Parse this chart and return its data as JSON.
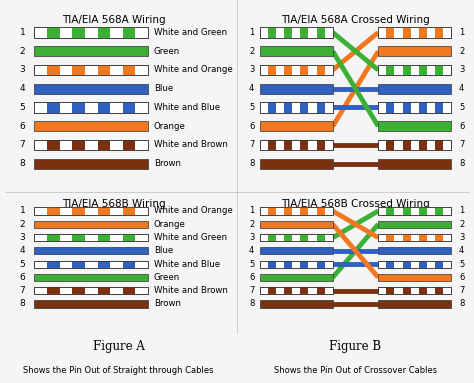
{
  "title_568A": "TIA/EIA 568A Wiring",
  "title_568B": "TIA/EIA 568B Wiring",
  "title_568A_cross": "TIA/EIA 568A Crossed Wiring",
  "title_568B_cross": "TIA/EIA 568B Crossed Wiring",
  "figure_A": "Figure A",
  "figure_B": "Figure B",
  "caption_A": "Shows the Pin Out of Straight through Cables",
  "caption_B": "Shows the Pin Out of Crossover Cables",
  "wiring_568A": [
    {
      "pin": 1,
      "label": "White and Green",
      "solid": false,
      "color": "#3cb034",
      "stripe": "#ffffff"
    },
    {
      "pin": 2,
      "label": "Green",
      "solid": true,
      "color": "#3cb034",
      "stripe": null
    },
    {
      "pin": 3,
      "label": "White and Orange",
      "solid": false,
      "color": "#f07820",
      "stripe": "#ffffff"
    },
    {
      "pin": 4,
      "label": "Blue",
      "solid": true,
      "color": "#3060c0",
      "stripe": null
    },
    {
      "pin": 5,
      "label": "White and Blue",
      "solid": false,
      "color": "#3060c0",
      "stripe": "#ffffff"
    },
    {
      "pin": 6,
      "label": "Orange",
      "solid": true,
      "color": "#f07820",
      "stripe": null
    },
    {
      "pin": 7,
      "label": "White and Brown",
      "solid": false,
      "color": "#7b3010",
      "stripe": "#ffffff"
    },
    {
      "pin": 8,
      "label": "Brown",
      "solid": true,
      "color": "#7b3010",
      "stripe": null
    }
  ],
  "wiring_568B": [
    {
      "pin": 1,
      "label": "White and Orange",
      "solid": false,
      "color": "#f07820",
      "stripe": "#ffffff"
    },
    {
      "pin": 2,
      "label": "Orange",
      "solid": true,
      "color": "#f07820",
      "stripe": null
    },
    {
      "pin": 3,
      "label": "White and Green",
      "solid": false,
      "color": "#3cb034",
      "stripe": "#ffffff"
    },
    {
      "pin": 4,
      "label": "Blue",
      "solid": true,
      "color": "#3060c0",
      "stripe": null
    },
    {
      "pin": 5,
      "label": "White and Blue",
      "solid": false,
      "color": "#3060c0",
      "stripe": "#ffffff"
    },
    {
      "pin": 6,
      "label": "Green",
      "solid": true,
      "color": "#3cb034",
      "stripe": null
    },
    {
      "pin": 7,
      "label": "White and Brown",
      "solid": false,
      "color": "#7b3010",
      "stripe": "#ffffff"
    },
    {
      "pin": 8,
      "label": "Brown",
      "solid": true,
      "color": "#7b3010",
      "stripe": null
    }
  ],
  "bg_color": "#f5f5f5",
  "border_color": "#333333",
  "text_color": "#000000",
  "title_fontsize": 7.5,
  "label_fontsize": 6.2,
  "pin_fontsize": 6.5
}
